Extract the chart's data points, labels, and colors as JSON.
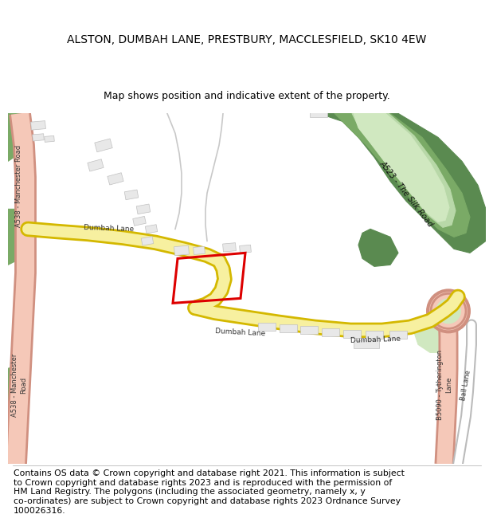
{
  "title": "ALSTON, DUMBAH LANE, PRESTBURY, MACCLESFIELD, SK10 4EW",
  "subtitle": "Map shows position and indicative extent of the property.",
  "footer": "Contains OS data © Crown copyright and database right 2021. This information is subject\nto Crown copyright and database rights 2023 and is reproduced with the permission of\nHM Land Registry. The polygons (including the associated geometry, namely x, y\nco-ordinates) are subject to Crown copyright and database rights 2023 Ordnance Survey\n100026316.",
  "map_bg": "#f5f0eb",
  "road_yellow_fill": "#f7f0a0",
  "road_yellow_border": "#d4b800",
  "road_pink_fill": "#f5c8b8",
  "road_pink_border": "#d09080",
  "road_white_fill": "#ffffff",
  "road_white_border": "#bbbbbb",
  "green_dark": "#5a8a50",
  "green_medium": "#7aaa66",
  "green_light": "#b8d8a8",
  "green_pale": "#d0e8c0",
  "plot_color": "#dd0000",
  "building_fill": "#e8e8e8",
  "building_edge": "#c0c0c0",
  "title_fontsize": 10,
  "subtitle_fontsize": 9,
  "footer_fontsize": 7.8,
  "label_fontsize": 6.5
}
